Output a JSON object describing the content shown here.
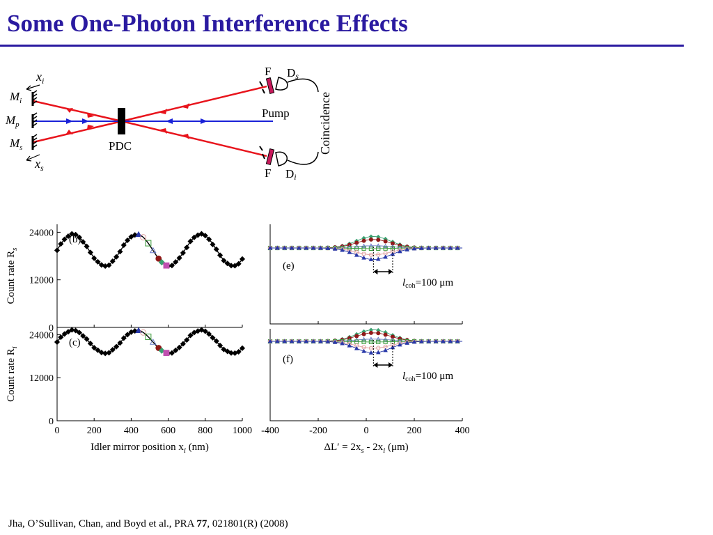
{
  "slide": {
    "title": "Some One-Photon Interference Effects",
    "accent_color": "#2a1aa0"
  },
  "schematic": {
    "labels": {
      "xi": "x",
      "xi_sub": "i",
      "Mi": "M",
      "Mi_sub": "i",
      "Mp": "M",
      "Mp_sub": "p",
      "Ms": "M",
      "Ms_sub": "s",
      "xs": "x",
      "xs_sub": "s",
      "pdc": "PDC",
      "pump": "Pump",
      "F_top": "F",
      "Ds": "D",
      "Ds_sub": "s",
      "F_bottom": "F",
      "Di": "D",
      "Di_sub": "i",
      "coincidence": "Coincidence"
    },
    "colors": {
      "red_beam": "#e8141c",
      "blue_beam": "#1a22d8",
      "filter": "#c8185a"
    }
  },
  "chart_data": [
    {
      "type": "scatter",
      "panel": "(b)",
      "ylabel": "Count rate R",
      "ylabel_sub": "s",
      "yticks": [
        "24000",
        "12000",
        "0"
      ],
      "ylim": [
        0,
        26000
      ],
      "xlim": [
        0,
        1000
      ],
      "offset": 19500,
      "amplitude": 4000,
      "period": 345,
      "phase_x": 258,
      "markers": [
        {
          "x": 440,
          "symbol": "triangle",
          "color": "#2838a8"
        },
        {
          "x": 465,
          "symbol": "circle-open",
          "color": "#e0a0a0"
        },
        {
          "x": 492,
          "symbol": "square-open",
          "color": "#3a9a3a"
        },
        {
          "x": 518,
          "symbol": "triangle-open",
          "color": "#6a7ac8"
        },
        {
          "x": 548,
          "symbol": "circle",
          "color": "#901818"
        },
        {
          "x": 565,
          "symbol": "diamond",
          "color": "#3aa070"
        },
        {
          "x": 590,
          "symbol": "square",
          "color": "#c050b0"
        }
      ]
    },
    {
      "type": "scatter",
      "panel": "(c)",
      "ylabel": "Count rate R",
      "ylabel_sub": "i",
      "yticks": [
        "24000",
        "12000",
        "0"
      ],
      "ylim": [
        0,
        26000
      ],
      "xlim": [
        0,
        1000
      ],
      "xticks": [
        "0",
        "200",
        "400",
        "600",
        "800",
        "1000"
      ],
      "xlabel": "Idler mirror position x",
      "xlabel_sub": "i",
      "xlabel_unit": " (nm)",
      "offset": 22000,
      "amplitude": 3200,
      "period": 345,
      "phase_x": 258,
      "markers": [
        {
          "x": 440,
          "symbol": "triangle",
          "color": "#2838a8"
        },
        {
          "x": 465,
          "symbol": "circle-open",
          "color": "#e0a0a0"
        },
        {
          "x": 492,
          "symbol": "square-open",
          "color": "#3a9a3a"
        },
        {
          "x": 518,
          "symbol": "triangle-open",
          "color": "#6a7ac8"
        },
        {
          "x": 548,
          "symbol": "circle",
          "color": "#901818"
        },
        {
          "x": 565,
          "symbol": "diamond",
          "color": "#3aa070"
        },
        {
          "x": 590,
          "symbol": "square",
          "color": "#c050b0"
        }
      ]
    },
    {
      "type": "line",
      "panel": "(e)",
      "xlim": [
        -400,
        400
      ],
      "coherence_label": "l",
      "coherence_sub": "coh",
      "coherence_value": "=100 μm",
      "coherence_marker_x": [
        30,
        110
      ],
      "series": [
        {
          "peak_frac": 0.92,
          "symbol": "diamond",
          "color": "#3aa070"
        },
        {
          "peak_frac": 0.68,
          "symbol": "circle",
          "color": "#901818"
        },
        {
          "peak_frac": 0.18,
          "symbol": "triangle-open",
          "color": "#6a7ac8"
        },
        {
          "peak_frac": -0.05,
          "symbol": "square-open",
          "color": "#3a9a3a"
        },
        {
          "peak_frac": -0.55,
          "symbol": "circle-open",
          "color": "#e0a0a0"
        },
        {
          "peak_frac": -0.92,
          "symbol": "triangle",
          "color": "#2838a8"
        }
      ]
    },
    {
      "type": "line",
      "panel": "(f)",
      "xlim": [
        -400,
        400
      ],
      "xticks": [
        "-400",
        "-200",
        "0",
        "200",
        "400"
      ],
      "xlabel": "ΔL′ = 2x",
      "xlabel_rest_sub1": "s",
      "xlabel_rest_mid": " - 2x",
      "xlabel_rest_sub2": "i",
      "xlabel_unit": "  (μm)",
      "coherence_label": "l",
      "coherence_sub": "coh",
      "coherence_value": "=100 μm",
      "coherence_marker_x": [
        30,
        110
      ],
      "series": [
        {
          "peak_frac": 0.92,
          "symbol": "diamond",
          "color": "#3aa070"
        },
        {
          "peak_frac": 0.68,
          "symbol": "circle",
          "color": "#901818"
        },
        {
          "peak_frac": 0.18,
          "symbol": "triangle-open",
          "color": "#6a7ac8"
        },
        {
          "peak_frac": -0.05,
          "symbol": "square-open",
          "color": "#3a9a3a"
        },
        {
          "peak_frac": -0.55,
          "symbol": "circle-open",
          "color": "#e0a0a0"
        },
        {
          "peak_frac": -0.92,
          "symbol": "triangle",
          "color": "#2838a8"
        }
      ]
    }
  ],
  "citation": {
    "authors": "Jha, O’Sullivan, Chan, and Boyd et al.,  PRA ",
    "volume": "77",
    "rest": ", 021801(R)  (2008)"
  }
}
